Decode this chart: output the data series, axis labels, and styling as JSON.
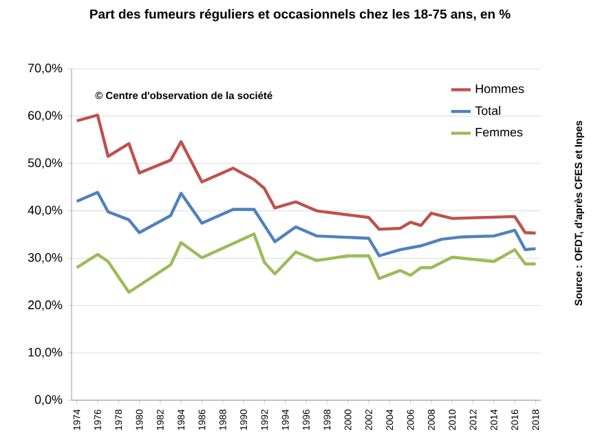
{
  "chart_data": {
    "type": "line",
    "title": "Part des fumeurs réguliers et occasionnels chez les 18-75 ans, en %",
    "annotations": [
      "© Centre d'observation de la société",
      "Source : OFDT, d'après CFES et Inpes"
    ],
    "series": [
      {
        "name": "Hommes",
        "color": "#c0504d",
        "x": [
          1974,
          1976,
          1977,
          1979,
          1980,
          1983,
          1984,
          1986,
          1989,
          1991,
          1992,
          1993,
          1995,
          1997,
          2002,
          2003,
          2005,
          2006,
          2007,
          2008,
          2010,
          2016,
          2017,
          2018
        ],
        "values": [
          59.0,
          60.2,
          51.5,
          54.2,
          48.0,
          50.7,
          54.6,
          46.1,
          49.0,
          46.6,
          44.7,
          40.6,
          41.9,
          40.0,
          38.6,
          36.1,
          36.3,
          37.6,
          36.9,
          39.5,
          38.4,
          38.8,
          35.4,
          35.3
        ]
      },
      {
        "name": "Total",
        "color": "#4f81bd",
        "x": [
          1974,
          1976,
          1977,
          1979,
          1980,
          1983,
          1984,
          1986,
          1989,
          1991,
          1993,
          1995,
          1997,
          2002,
          2003,
          2005,
          2007,
          2009,
          2011,
          2014,
          2016,
          2017,
          2018
        ],
        "values": [
          42.0,
          43.9,
          39.8,
          38.1,
          35.4,
          39.0,
          43.7,
          37.4,
          40.3,
          40.3,
          33.5,
          36.6,
          34.7,
          34.2,
          30.5,
          31.8,
          32.6,
          34.0,
          34.5,
          34.7,
          35.9,
          31.8,
          32.0
        ]
      },
      {
        "name": "Femmes",
        "color": "#9bbb59",
        "x": [
          1974,
          1976,
          1977,
          1979,
          1983,
          1984,
          1986,
          1991,
          1992,
          1993,
          1995,
          1997,
          2000,
          2002,
          2003,
          2005,
          2006,
          2007,
          2008,
          2010,
          2014,
          2016,
          2017,
          2018
        ],
        "values": [
          28.0,
          30.8,
          29.3,
          22.8,
          28.6,
          33.3,
          30.1,
          35.1,
          29.1,
          26.7,
          31.3,
          29.5,
          30.5,
          30.5,
          25.7,
          27.4,
          26.4,
          28.0,
          28.0,
          30.2,
          29.3,
          31.8,
          28.8,
          28.8
        ]
      }
    ],
    "xlim": [
      1973.5,
      2018.5
    ],
    "xticks": [
      1974,
      1976,
      1978,
      1980,
      1982,
      1984,
      1986,
      1988,
      1990,
      1992,
      1994,
      1996,
      1998,
      2000,
      2002,
      2004,
      2006,
      2008,
      2010,
      2012,
      2014,
      2016,
      2018
    ],
    "ylim": [
      0,
      70
    ],
    "yticks": [
      {
        "value": 0,
        "label": "0,0%"
      },
      {
        "value": 10,
        "label": "10,0%"
      },
      {
        "value": 20,
        "label": "20,0%"
      },
      {
        "value": 30,
        "label": "30,0%"
      },
      {
        "value": 40,
        "label": "40,0%"
      },
      {
        "value": 50,
        "label": "50,0%"
      },
      {
        "value": 60,
        "label": "60,0%"
      },
      {
        "value": 70,
        "label": "70,0%"
      }
    ],
    "grid": "y",
    "legend": "top right",
    "line_style": "solid"
  }
}
